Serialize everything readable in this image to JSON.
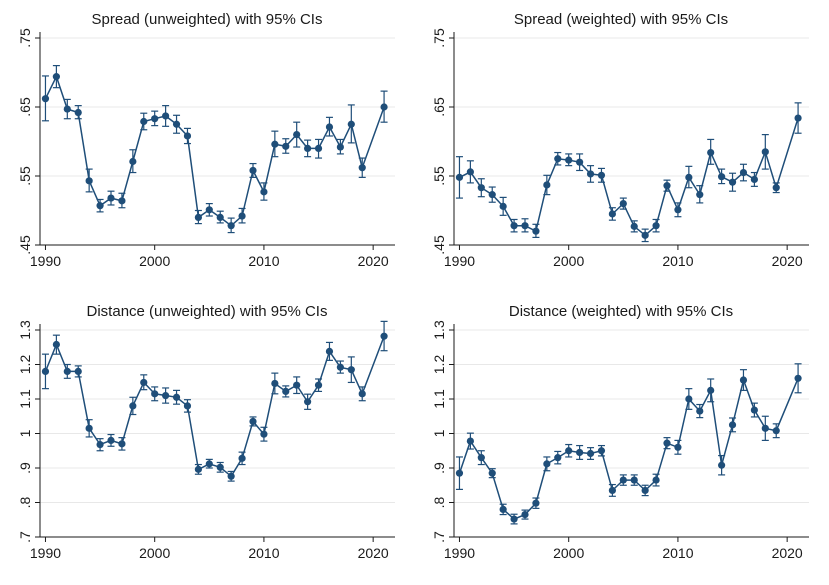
{
  "colors": {
    "series": "#1f4e79",
    "axis": "#1a1a1a",
    "grid": "#e8e8e8"
  },
  "chart_data": [
    {
      "type": "line",
      "title": "Spread (unweighted) with 95% CIs",
      "xlabel": "",
      "ylabel": "",
      "xlim": [
        1989.5,
        2022
      ],
      "ylim": [
        0.45,
        0.75
      ],
      "xticks": [
        1990,
        2000,
        2010,
        2020
      ],
      "xtick_labels": [
        "1990",
        "2000",
        "2010",
        "2020"
      ],
      "yticks": [
        0.45,
        0.55,
        0.65,
        0.75
      ],
      "ytick_labels": [
        ".45",
        ".55",
        ".65",
        ".75"
      ],
      "x": [
        1990,
        1991,
        1992,
        1993,
        1994,
        1995,
        1996,
        1997,
        1998,
        1999,
        2000,
        2001,
        2002,
        2003,
        2004,
        2005,
        2006,
        2007,
        2008,
        2009,
        2010,
        2011,
        2012,
        2013,
        2014,
        2015,
        2016,
        2017,
        2018,
        2019,
        2021
      ],
      "y": [
        0.662,
        0.694,
        0.647,
        0.642,
        0.543,
        0.507,
        0.518,
        0.514,
        0.571,
        0.629,
        0.633,
        0.637,
        0.625,
        0.608,
        0.49,
        0.501,
        0.49,
        0.478,
        0.492,
        0.558,
        0.527,
        0.596,
        0.593,
        0.61,
        0.59,
        0.59,
        0.621,
        0.592,
        0.625,
        0.562,
        0.65
      ],
      "lower": [
        0.63,
        0.678,
        0.633,
        0.633,
        0.527,
        0.498,
        0.508,
        0.504,
        0.555,
        0.617,
        0.623,
        0.622,
        0.612,
        0.597,
        0.481,
        0.492,
        0.482,
        0.468,
        0.482,
        0.548,
        0.515,
        0.578,
        0.583,
        0.592,
        0.578,
        0.576,
        0.608,
        0.582,
        0.598,
        0.548,
        0.628
      ],
      "upper": [
        0.695,
        0.71,
        0.661,
        0.652,
        0.56,
        0.516,
        0.528,
        0.525,
        0.588,
        0.641,
        0.644,
        0.652,
        0.638,
        0.619,
        0.5,
        0.51,
        0.499,
        0.489,
        0.503,
        0.568,
        0.54,
        0.615,
        0.604,
        0.628,
        0.602,
        0.603,
        0.635,
        0.603,
        0.653,
        0.576,
        0.673
      ]
    },
    {
      "type": "line",
      "title": "Spread (weighted) with 95% CIs",
      "xlabel": "",
      "ylabel": "",
      "xlim": [
        1989.5,
        2022
      ],
      "ylim": [
        0.45,
        0.75
      ],
      "xticks": [
        1990,
        2000,
        2010,
        2020
      ],
      "xtick_labels": [
        "1990",
        "2000",
        "2010",
        "2020"
      ],
      "yticks": [
        0.45,
        0.55,
        0.65,
        0.75
      ],
      "ytick_labels": [
        ".45",
        ".55",
        ".65",
        ".75"
      ],
      "x": [
        1990,
        1991,
        1992,
        1993,
        1994,
        1995,
        1996,
        1997,
        1998,
        1999,
        2000,
        2001,
        2002,
        2003,
        2004,
        2005,
        2006,
        2007,
        2008,
        2009,
        2010,
        2011,
        2012,
        2013,
        2014,
        2015,
        2016,
        2017,
        2018,
        2019,
        2021
      ],
      "y": [
        0.548,
        0.556,
        0.533,
        0.523,
        0.506,
        0.478,
        0.478,
        0.47,
        0.537,
        0.575,
        0.573,
        0.57,
        0.553,
        0.551,
        0.495,
        0.51,
        0.477,
        0.464,
        0.478,
        0.536,
        0.501,
        0.548,
        0.523,
        0.584,
        0.549,
        0.541,
        0.555,
        0.545,
        0.585,
        0.533,
        0.634
      ],
      "lower": [
        0.518,
        0.54,
        0.52,
        0.512,
        0.493,
        0.469,
        0.469,
        0.461,
        0.523,
        0.566,
        0.565,
        0.558,
        0.541,
        0.541,
        0.486,
        0.502,
        0.469,
        0.455,
        0.469,
        0.528,
        0.491,
        0.533,
        0.511,
        0.567,
        0.539,
        0.528,
        0.543,
        0.535,
        0.56,
        0.526,
        0.612
      ],
      "upper": [
        0.578,
        0.572,
        0.546,
        0.534,
        0.519,
        0.487,
        0.488,
        0.48,
        0.551,
        0.584,
        0.582,
        0.582,
        0.565,
        0.561,
        0.504,
        0.518,
        0.485,
        0.473,
        0.487,
        0.544,
        0.511,
        0.564,
        0.536,
        0.603,
        0.56,
        0.554,
        0.567,
        0.555,
        0.61,
        0.54,
        0.656
      ]
    },
    {
      "type": "line",
      "title": "Distance (unweighted) with 95% CIs",
      "xlabel": "",
      "ylabel": "",
      "xlim": [
        1989.5,
        2022
      ],
      "ylim": [
        0.7,
        1.3
      ],
      "xticks": [
        1990,
        2000,
        2010,
        2020
      ],
      "xtick_labels": [
        "1990",
        "2000",
        "2010",
        "2020"
      ],
      "yticks": [
        0.7,
        0.8,
        0.9,
        1.0,
        1.1,
        1.2,
        1.3
      ],
      "ytick_labels": [
        ".7",
        ".8",
        ".9",
        "1",
        "1.1",
        "1.2",
        "1.3"
      ],
      "x": [
        1990,
        1991,
        1992,
        1993,
        1994,
        1995,
        1996,
        1997,
        1998,
        1999,
        2000,
        2001,
        2002,
        2003,
        2004,
        2005,
        2006,
        2007,
        2008,
        2009,
        2010,
        2011,
        2012,
        2013,
        2014,
        2015,
        2016,
        2017,
        2018,
        2019,
        2021
      ],
      "y": [
        1.18,
        1.258,
        1.18,
        1.18,
        1.015,
        0.968,
        0.98,
        0.97,
        1.08,
        1.148,
        1.115,
        1.11,
        1.105,
        1.08,
        0.896,
        0.912,
        0.902,
        0.876,
        0.928,
        1.035,
        0.998,
        1.145,
        1.122,
        1.14,
        1.092,
        1.14,
        1.238,
        1.192,
        1.185,
        1.115,
        1.282
      ],
      "lower": [
        1.13,
        1.23,
        1.16,
        1.164,
        0.99,
        0.95,
        0.963,
        0.952,
        1.055,
        1.127,
        1.095,
        1.088,
        1.085,
        1.062,
        0.882,
        0.9,
        0.888,
        0.862,
        0.91,
        1.022,
        0.978,
        1.115,
        1.106,
        1.116,
        1.07,
        1.122,
        1.212,
        1.175,
        1.148,
        1.095,
        1.24
      ],
      "upper": [
        1.23,
        1.285,
        1.2,
        1.196,
        1.04,
        0.985,
        0.997,
        0.988,
        1.105,
        1.17,
        1.135,
        1.132,
        1.125,
        1.098,
        0.91,
        0.925,
        0.916,
        0.89,
        0.946,
        1.048,
        1.018,
        1.175,
        1.138,
        1.164,
        1.114,
        1.158,
        1.264,
        1.21,
        1.222,
        1.135,
        1.325
      ]
    },
    {
      "type": "line",
      "title": "Distance (weighted) with 95% CIs",
      "xlabel": "",
      "ylabel": "",
      "xlim": [
        1989.5,
        2022
      ],
      "ylim": [
        0.7,
        1.3
      ],
      "xticks": [
        1990,
        2000,
        2010,
        2020
      ],
      "xtick_labels": [
        "1990",
        "2000",
        "2010",
        "2020"
      ],
      "yticks": [
        0.7,
        0.8,
        0.9,
        1.0,
        1.1,
        1.2,
        1.3
      ],
      "ytick_labels": [
        ".7",
        ".8",
        ".9",
        "1",
        "1.1",
        "1.2",
        "1.3"
      ],
      "x": [
        1990,
        1991,
        1992,
        1993,
        1994,
        1995,
        1996,
        1997,
        1998,
        1999,
        2000,
        2001,
        2002,
        2003,
        2004,
        2005,
        2006,
        2007,
        2008,
        2009,
        2010,
        2011,
        2012,
        2013,
        2014,
        2015,
        2016,
        2017,
        2018,
        2019,
        2021
      ],
      "y": [
        0.885,
        0.978,
        0.93,
        0.885,
        0.78,
        0.752,
        0.765,
        0.798,
        0.912,
        0.93,
        0.95,
        0.945,
        0.942,
        0.95,
        0.835,
        0.865,
        0.865,
        0.835,
        0.865,
        0.972,
        0.96,
        1.1,
        1.065,
        1.125,
        0.908,
        1.025,
        1.155,
        1.068,
        1.015,
        1.008,
        1.16
      ],
      "lower": [
        0.838,
        0.955,
        0.91,
        0.872,
        0.765,
        0.738,
        0.752,
        0.783,
        0.892,
        0.912,
        0.932,
        0.925,
        0.925,
        0.935,
        0.818,
        0.85,
        0.85,
        0.82,
        0.848,
        0.956,
        0.94,
        1.07,
        1.046,
        1.092,
        0.88,
        1.005,
        1.125,
        1.048,
        0.98,
        0.988,
        1.118
      ],
      "upper": [
        0.932,
        1.001,
        0.95,
        0.898,
        0.795,
        0.766,
        0.778,
        0.813,
        0.932,
        0.948,
        0.968,
        0.965,
        0.959,
        0.965,
        0.852,
        0.88,
        0.88,
        0.85,
        0.882,
        0.988,
        0.98,
        1.13,
        1.084,
        1.158,
        0.936,
        1.045,
        1.185,
        1.088,
        1.05,
        1.028,
        1.202
      ]
    }
  ]
}
